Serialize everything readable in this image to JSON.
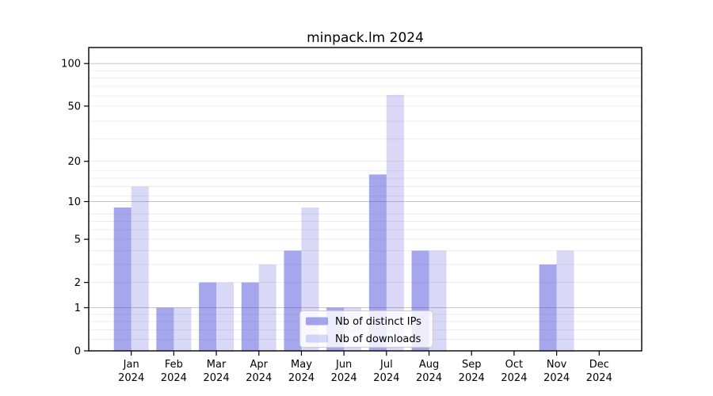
{
  "chart_data": {
    "type": "bar",
    "title": "minpack.lm 2024",
    "categories": [
      "Jan",
      "Feb",
      "Mar",
      "Apr",
      "May",
      "Jun",
      "Jul",
      "Aug",
      "Sep",
      "Oct",
      "Nov",
      "Dec"
    ],
    "year": "2024",
    "series": [
      {
        "id": "distinct-ips",
        "name": "Nb of distinct IPs",
        "values": [
          9,
          1,
          2,
          2,
          4,
          1,
          16,
          4,
          0,
          0,
          3,
          0
        ],
        "fill": "#3c3cd7",
        "fill_opacity": 0.46
      },
      {
        "id": "downloads",
        "name": "Nb of downloads",
        "values": [
          13,
          1,
          2,
          3,
          9,
          1,
          60,
          4,
          0,
          0,
          4,
          0
        ],
        "fill": "#3c3cd7",
        "fill_opacity": 0.195
      }
    ],
    "y_scale": "log10(value+1)",
    "ylim": [
      0,
      130
    ],
    "y_ticks": [
      0,
      1,
      2,
      5,
      10,
      20,
      50,
      100
    ],
    "y_major_gridlines": [
      1,
      10,
      100
    ],
    "y_minor_gridlines": [
      0.2,
      0.4,
      0.6,
      0.8,
      3,
      4,
      6,
      7,
      8,
      11,
      13,
      15,
      17,
      29,
      39,
      59,
      69,
      79,
      89
    ],
    "xlabel": "",
    "ylabel": "",
    "grid": true,
    "legend_position": "lower center",
    "colors": {
      "bar_base": "#3c3cd7",
      "grid_major": "#c6c6c6",
      "grid_minor": "#ededed",
      "axis": "#000000",
      "legend_border": "#cccccc",
      "legend_bg_rgba": "rgba(255,255,255,0.8)"
    }
  }
}
